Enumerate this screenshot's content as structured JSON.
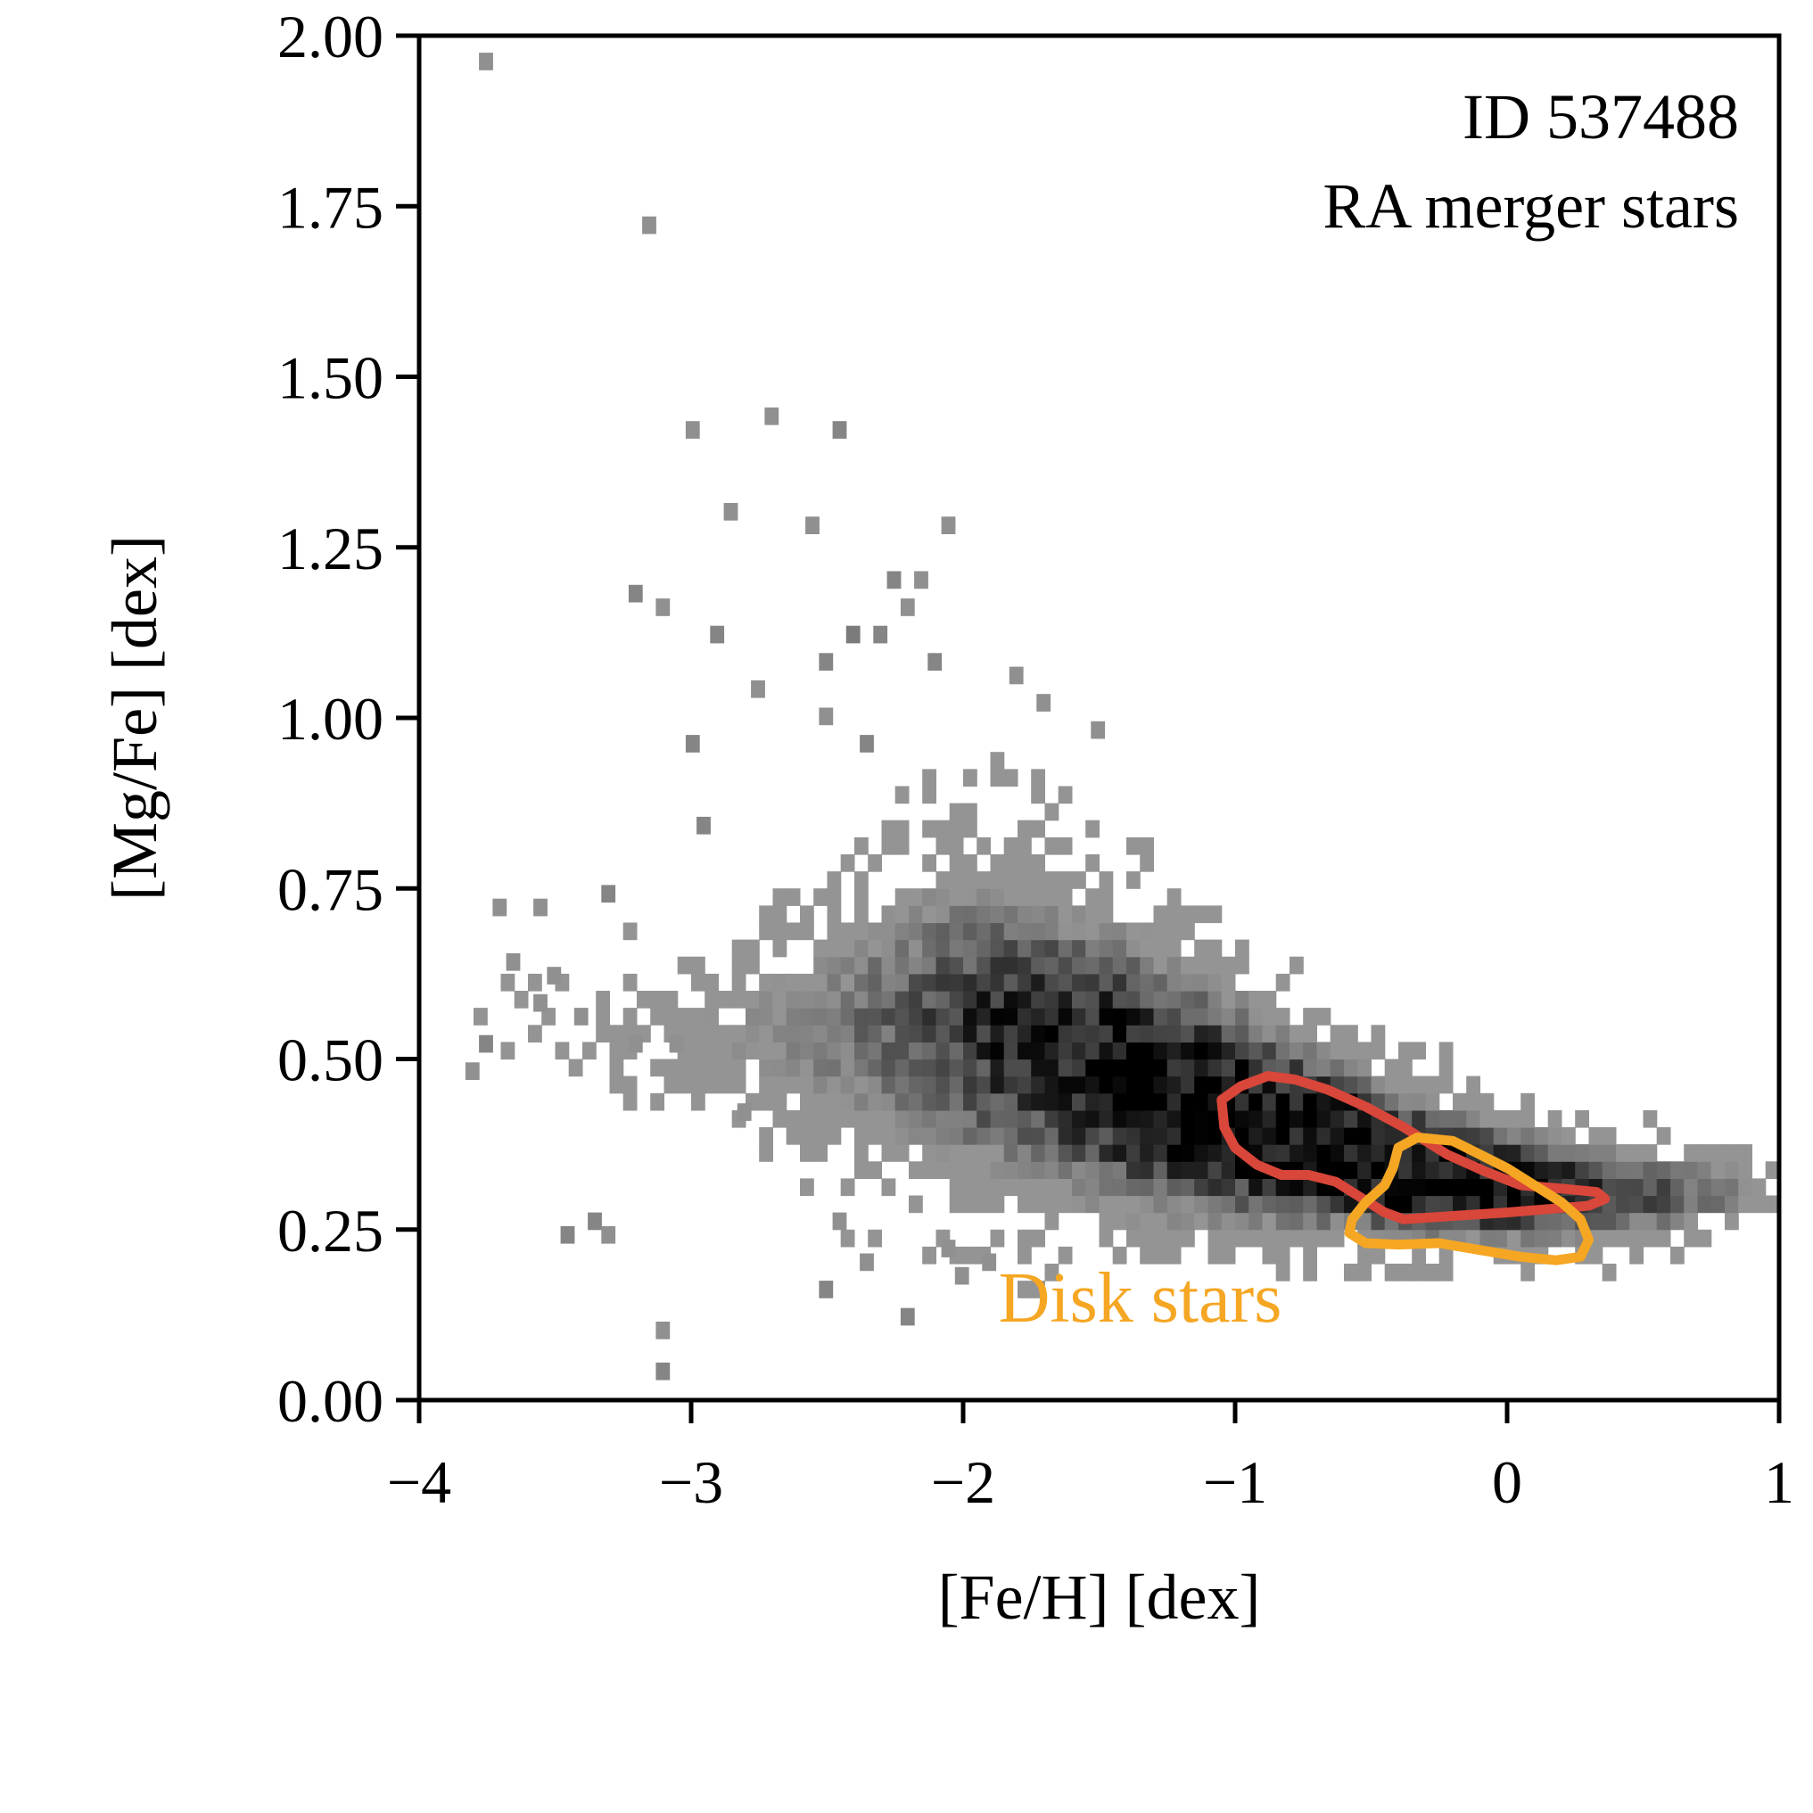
{
  "chart_data": {
    "type": "heatmap",
    "title": "",
    "xlabel": "[Fe/H] [dex]",
    "ylabel": "[Mg/Fe] [dex]",
    "xlim": [
      -4,
      1
    ],
    "ylim": [
      0,
      2
    ],
    "xticks": [
      -4,
      -3,
      -2,
      -1,
      0,
      1
    ],
    "xtick_labels": [
      "−4",
      "−3",
      "−2",
      "−1",
      "0",
      "1"
    ],
    "yticks": [
      0,
      0.25,
      0.5,
      0.75,
      1.0,
      1.25,
      1.5,
      1.75,
      2.0
    ],
    "ytick_labels": [
      "0.00",
      "0.25",
      "0.50",
      "0.75",
      "1.00",
      "1.25",
      "1.50",
      "1.75",
      "2.00"
    ],
    "grid": false,
    "colormap": "greys",
    "bin_size": {
      "x": 0.05,
      "y": 0.025
    },
    "annotation": {
      "lines": [
        "ID 537488",
        "RA merger stars"
      ],
      "placement": "top-right"
    },
    "disk_label": "Disk stars",
    "colors": {
      "merger_contour": "#d9463a",
      "disk_contour": "#f5a623",
      "disk_label": "#f5a623"
    },
    "ridge": [
      {
        "x": -3.3,
        "y": 0.56,
        "sx": 0.28,
        "sy": 0.06,
        "d": 0.1
      },
      {
        "x": -2.8,
        "y": 0.53,
        "sx": 0.28,
        "sy": 0.08,
        "d": 0.2
      },
      {
        "x": -2.3,
        "y": 0.55,
        "sx": 0.28,
        "sy": 0.13,
        "d": 0.35
      },
      {
        "x": -1.9,
        "y": 0.56,
        "sx": 0.25,
        "sy": 0.15,
        "d": 0.5
      },
      {
        "x": -1.5,
        "y": 0.5,
        "sx": 0.25,
        "sy": 0.13,
        "d": 0.7
      },
      {
        "x": -1.1,
        "y": 0.43,
        "sx": 0.25,
        "sy": 0.1,
        "d": 0.9
      },
      {
        "x": -0.7,
        "y": 0.38,
        "sx": 0.22,
        "sy": 0.07,
        "d": 1.0
      },
      {
        "x": -0.3,
        "y": 0.33,
        "sx": 0.22,
        "sy": 0.06,
        "d": 1.0
      },
      {
        "x": 0.1,
        "y": 0.31,
        "sx": 0.2,
        "sy": 0.05,
        "d": 0.85
      },
      {
        "x": 0.5,
        "y": 0.3,
        "sx": 0.2,
        "sy": 0.04,
        "d": 0.55
      },
      {
        "x": 0.8,
        "y": 0.31,
        "sx": 0.12,
        "sy": 0.03,
        "d": 0.3
      }
    ],
    "outlier_bins": [
      {
        "x": -3.78,
        "y": 1.95,
        "v": 0.3
      },
      {
        "x": -3.18,
        "y": 1.71,
        "v": 0.3
      },
      {
        "x": -3.02,
        "y": 1.41,
        "v": 0.3
      },
      {
        "x": -2.73,
        "y": 1.43,
        "v": 0.3
      },
      {
        "x": -2.48,
        "y": 1.41,
        "v": 0.35
      },
      {
        "x": -2.88,
        "y": 1.29,
        "v": 0.3
      },
      {
        "x": -2.58,
        "y": 1.27,
        "v": 0.3
      },
      {
        "x": -2.08,
        "y": 1.27,
        "v": 0.3
      },
      {
        "x": -3.23,
        "y": 1.17,
        "v": 0.35
      },
      {
        "x": -3.13,
        "y": 1.15,
        "v": 0.3
      },
      {
        "x": -2.93,
        "y": 1.11,
        "v": 0.35
      },
      {
        "x": -2.78,
        "y": 1.03,
        "v": 0.3
      },
      {
        "x": -3.02,
        "y": 0.95,
        "v": 0.35
      },
      {
        "x": -2.98,
        "y": 0.83,
        "v": 0.35
      },
      {
        "x": -3.58,
        "y": 0.71,
        "v": 0.3
      },
      {
        "x": -3.73,
        "y": 0.71,
        "v": 0.3
      },
      {
        "x": -3.68,
        "y": 0.63,
        "v": 0.3
      },
      {
        "x": -3.53,
        "y": 0.61,
        "v": 0.3
      },
      {
        "x": -3.33,
        "y": 0.73,
        "v": 0.35
      },
      {
        "x": -3.78,
        "y": 0.51,
        "v": 0.35
      },
      {
        "x": -3.83,
        "y": 0.47,
        "v": 0.3
      },
      {
        "x": -3.58,
        "y": 0.57,
        "v": 0.3
      },
      {
        "x": -3.43,
        "y": 0.55,
        "v": 0.3
      },
      {
        "x": -3.23,
        "y": 0.51,
        "v": 0.3
      },
      {
        "x": -3.08,
        "y": 0.51,
        "v": 0.3
      },
      {
        "x": -3.48,
        "y": 0.23,
        "v": 0.35
      },
      {
        "x": -3.38,
        "y": 0.25,
        "v": 0.35
      },
      {
        "x": -3.33,
        "y": 0.23,
        "v": 0.3
      },
      {
        "x": -3.13,
        "y": 0.09,
        "v": 0.3
      },
      {
        "x": -3.13,
        "y": 0.03,
        "v": 0.35
      },
      {
        "x": -2.48,
        "y": 0.25,
        "v": 0.3
      },
      {
        "x": -2.53,
        "y": 0.15,
        "v": 0.35
      },
      {
        "x": -2.38,
        "y": 0.19,
        "v": 0.3
      },
      {
        "x": -2.23,
        "y": 0.11,
        "v": 0.35
      },
      {
        "x": -2.03,
        "y": 0.17,
        "v": 0.3
      },
      {
        "x": -2.08,
        "y": 0.21,
        "v": 0.3
      },
      {
        "x": -1.93,
        "y": 0.19,
        "v": 0.3
      },
      {
        "x": -2.83,
        "y": 0.41,
        "v": 0.3
      },
      {
        "x": -2.28,
        "y": 1.19,
        "v": 0.35
      },
      {
        "x": -2.18,
        "y": 1.19,
        "v": 0.3
      },
      {
        "x": -2.43,
        "y": 1.11,
        "v": 0.4
      },
      {
        "x": -2.33,
        "y": 1.11,
        "v": 0.35
      },
      {
        "x": -2.53,
        "y": 1.07,
        "v": 0.35
      },
      {
        "x": -2.13,
        "y": 1.07,
        "v": 0.35
      },
      {
        "x": -2.23,
        "y": 1.15,
        "v": 0.3
      },
      {
        "x": -1.83,
        "y": 1.05,
        "v": 0.3
      },
      {
        "x": -1.73,
        "y": 1.01,
        "v": 0.3
      },
      {
        "x": -1.53,
        "y": 0.97,
        "v": 0.3
      },
      {
        "x": -2.38,
        "y": 0.95,
        "v": 0.35
      },
      {
        "x": -2.53,
        "y": 0.99,
        "v": 0.3
      }
    ],
    "contours": {
      "merger": [
        [
          -1.05,
          0.44
        ],
        [
          -0.98,
          0.46
        ],
        [
          -0.88,
          0.475
        ],
        [
          -0.78,
          0.47
        ],
        [
          -0.66,
          0.455
        ],
        [
          -0.52,
          0.43
        ],
        [
          -0.38,
          0.4
        ],
        [
          -0.22,
          0.36
        ],
        [
          -0.08,
          0.335
        ],
        [
          0.05,
          0.315
        ],
        [
          0.2,
          0.31
        ],
        [
          0.33,
          0.305
        ],
        [
          0.36,
          0.295
        ],
        [
          0.3,
          0.285
        ],
        [
          0.15,
          0.28
        ],
        [
          0.0,
          0.275
        ],
        [
          -0.2,
          0.27
        ],
        [
          -0.38,
          0.265
        ],
        [
          -0.45,
          0.275
        ],
        [
          -0.55,
          0.3
        ],
        [
          -0.63,
          0.32
        ],
        [
          -0.73,
          0.33
        ],
        [
          -0.83,
          0.33
        ],
        [
          -0.92,
          0.345
        ],
        [
          -1.0,
          0.37
        ],
        [
          -1.04,
          0.4
        ],
        [
          -1.05,
          0.44
        ]
      ],
      "disk": [
        [
          -0.4,
          0.37
        ],
        [
          -0.33,
          0.385
        ],
        [
          -0.2,
          0.38
        ],
        [
          -0.1,
          0.36
        ],
        [
          0.0,
          0.34
        ],
        [
          0.1,
          0.315
        ],
        [
          0.2,
          0.29
        ],
        [
          0.27,
          0.265
        ],
        [
          0.3,
          0.235
        ],
        [
          0.27,
          0.21
        ],
        [
          0.18,
          0.205
        ],
        [
          0.05,
          0.21
        ],
        [
          -0.1,
          0.22
        ],
        [
          -0.25,
          0.23
        ],
        [
          -0.4,
          0.228
        ],
        [
          -0.52,
          0.23
        ],
        [
          -0.58,
          0.245
        ],
        [
          -0.57,
          0.265
        ],
        [
          -0.52,
          0.29
        ],
        [
          -0.45,
          0.315
        ],
        [
          -0.42,
          0.34
        ],
        [
          -0.4,
          0.37
        ]
      ]
    }
  }
}
